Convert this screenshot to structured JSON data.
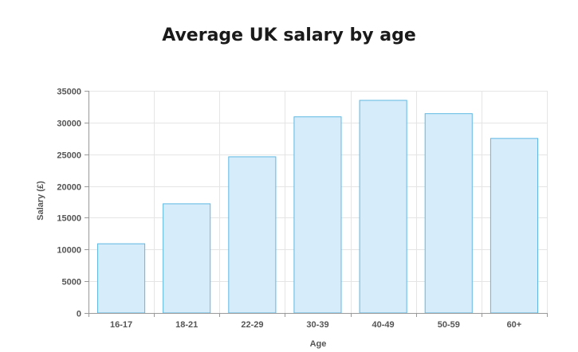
{
  "chart_data": {
    "type": "bar",
    "title": "Average UK salary by age",
    "xlabel": "Age",
    "ylabel": "Salary (£)",
    "categories": [
      "16-17",
      "18-21",
      "22-29",
      "30-39",
      "40-49",
      "50-59",
      "60+"
    ],
    "values": [
      10900,
      17200,
      24600,
      30900,
      33500,
      31400,
      27500
    ],
    "yticks": [
      0,
      5000,
      10000,
      15000,
      20000,
      25000,
      30000,
      35000
    ],
    "ylim": [
      0,
      35000
    ],
    "grid": true,
    "legend": "none",
    "colors": {
      "bar_fill": "#d6ecfa",
      "bar_stroke": "#5fb8e3",
      "grid": "#e5e5e5",
      "axis": "#999999"
    }
  }
}
